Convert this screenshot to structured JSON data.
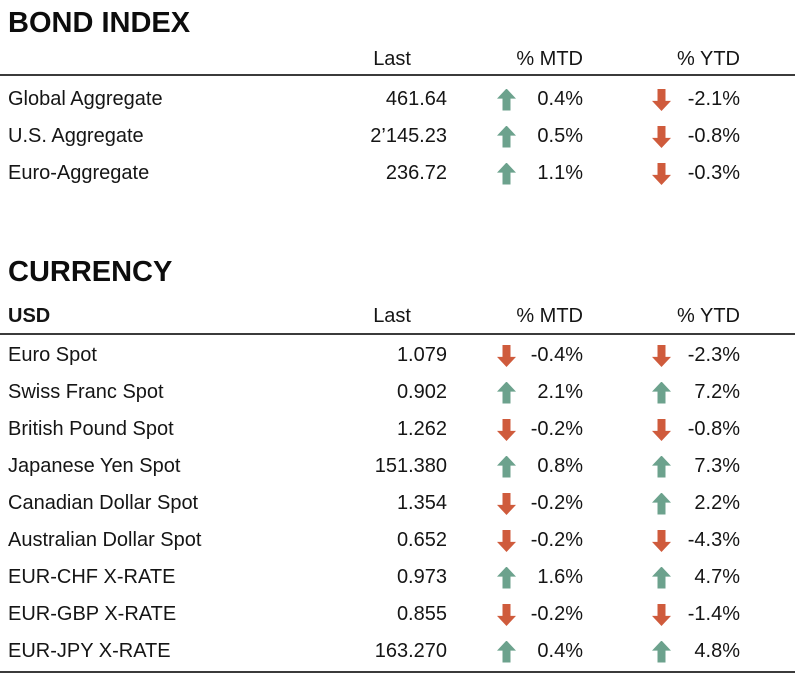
{
  "colors": {
    "up_arrow": "#6CA28D",
    "down_arrow": "#CF5B3C",
    "rule": "#3b3b3b",
    "text": "#151515"
  },
  "bond_index": {
    "title": "BOND INDEX",
    "header": {
      "name": "",
      "last": "Last",
      "mtd": "% MTD",
      "ytd": "% YTD"
    },
    "rows": [
      {
        "name": "Global Aggregate",
        "last": "461.64",
        "mtd": {
          "dir": "up",
          "value": "0.4%"
        },
        "ytd": {
          "dir": "down",
          "value": "-2.1%"
        }
      },
      {
        "name": "U.S. Aggregate",
        "last": "2’145.23",
        "mtd": {
          "dir": "up",
          "value": "0.5%"
        },
        "ytd": {
          "dir": "down",
          "value": "-0.8%"
        }
      },
      {
        "name": "Euro-Aggregate",
        "last": "236.72",
        "mtd": {
          "dir": "up",
          "value": "1.1%"
        },
        "ytd": {
          "dir": "down",
          "value": "-0.3%"
        }
      }
    ]
  },
  "currency": {
    "title": "CURRENCY",
    "header": {
      "name": "USD",
      "last": "Last",
      "mtd": "% MTD",
      "ytd": "% YTD"
    },
    "rows": [
      {
        "name": "Euro Spot",
        "last": "1.079",
        "mtd": {
          "dir": "down",
          "value": "-0.4%"
        },
        "ytd": {
          "dir": "down",
          "value": "-2.3%"
        }
      },
      {
        "name": "Swiss Franc Spot",
        "last": "0.902",
        "mtd": {
          "dir": "up",
          "value": "2.1%"
        },
        "ytd": {
          "dir": "up",
          "value": "7.2%"
        }
      },
      {
        "name": "British Pound Spot",
        "last": "1.262",
        "mtd": {
          "dir": "down",
          "value": "-0.2%"
        },
        "ytd": {
          "dir": "down",
          "value": "-0.8%"
        }
      },
      {
        "name": "Japanese Yen Spot",
        "last": "151.380",
        "mtd": {
          "dir": "up",
          "value": "0.8%"
        },
        "ytd": {
          "dir": "up",
          "value": "7.3%"
        }
      },
      {
        "name": "Canadian Dollar Spot",
        "last": "1.354",
        "mtd": {
          "dir": "down",
          "value": "-0.2%"
        },
        "ytd": {
          "dir": "up",
          "value": "2.2%"
        }
      },
      {
        "name": "Australian Dollar Spot",
        "last": "0.652",
        "mtd": {
          "dir": "down",
          "value": "-0.2%"
        },
        "ytd": {
          "dir": "down",
          "value": "-4.3%"
        }
      },
      {
        "name": "EUR-CHF X-RATE",
        "last": "0.973",
        "mtd": {
          "dir": "up",
          "value": "1.6%"
        },
        "ytd": {
          "dir": "up",
          "value": "4.7%"
        }
      },
      {
        "name": "EUR-GBP X-RATE",
        "last": "0.855",
        "mtd": {
          "dir": "down",
          "value": "-0.2%"
        },
        "ytd": {
          "dir": "down",
          "value": "-1.4%"
        }
      },
      {
        "name": "EUR-JPY X-RATE",
        "last": "163.270",
        "mtd": {
          "dir": "up",
          "value": "0.4%"
        },
        "ytd": {
          "dir": "up",
          "value": "4.8%"
        }
      }
    ]
  }
}
